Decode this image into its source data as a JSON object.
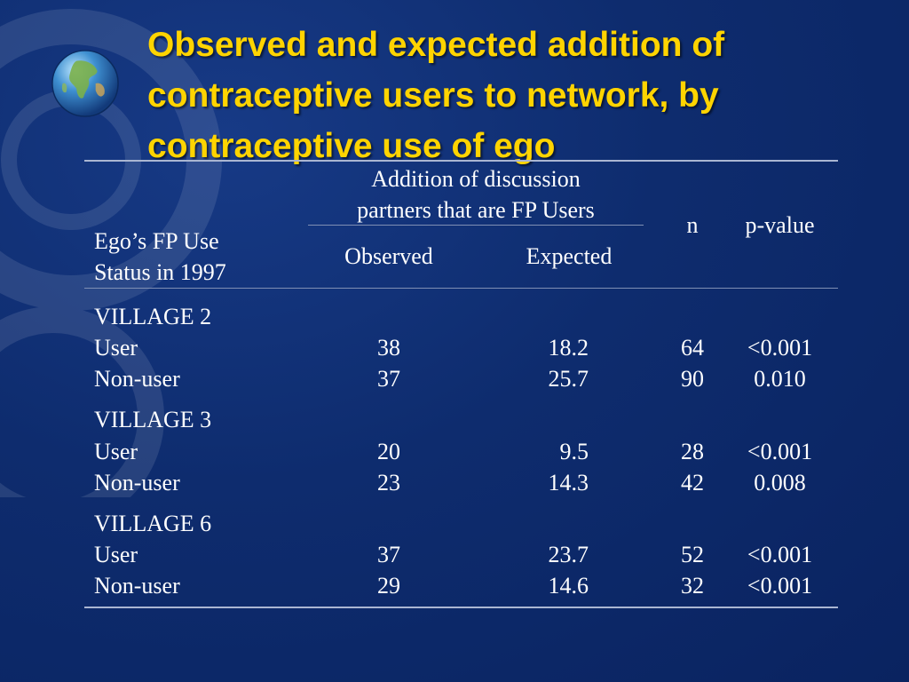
{
  "slide": {
    "title_lines": [
      "Observed and expected addition of",
      "contraceptive users to network, by",
      "contraceptive use of ego"
    ]
  },
  "table": {
    "headers": {
      "row_label": [
        "Ego’s FP Use",
        "Status in 1997"
      ],
      "group": [
        "Addition of discussion",
        "partners that are FP Users"
      ],
      "observed": "Observed",
      "expected": "Expected",
      "n": "n",
      "pvalue": "p-value"
    },
    "villages": [
      {
        "name": "VILLAGE 2",
        "rows": [
          {
            "label": "User",
            "observed": "38",
            "expected": "18.2",
            "n": "64",
            "pvalue": "<0.001"
          },
          {
            "label": "Non-user",
            "observed": "37",
            "expected": "25.7",
            "n": "90",
            "pvalue": "0.010"
          }
        ]
      },
      {
        "name": "VILLAGE 3",
        "rows": [
          {
            "label": "User",
            "observed": "20",
            "expected": "9.5",
            "n": "28",
            "pvalue": "<0.001"
          },
          {
            "label": "Non-user",
            "observed": "23",
            "expected": "14.3",
            "n": "42",
            "pvalue": "0.008"
          }
        ]
      },
      {
        "name": "VILLAGE 6",
        "rows": [
          {
            "label": "User",
            "observed": "37",
            "expected": "23.7",
            "n": "52",
            "pvalue": "<0.001"
          },
          {
            "label": "Non-user",
            "observed": "29",
            "expected": "14.6",
            "n": "32",
            "pvalue": "<0.001"
          }
        ]
      }
    ]
  }
}
